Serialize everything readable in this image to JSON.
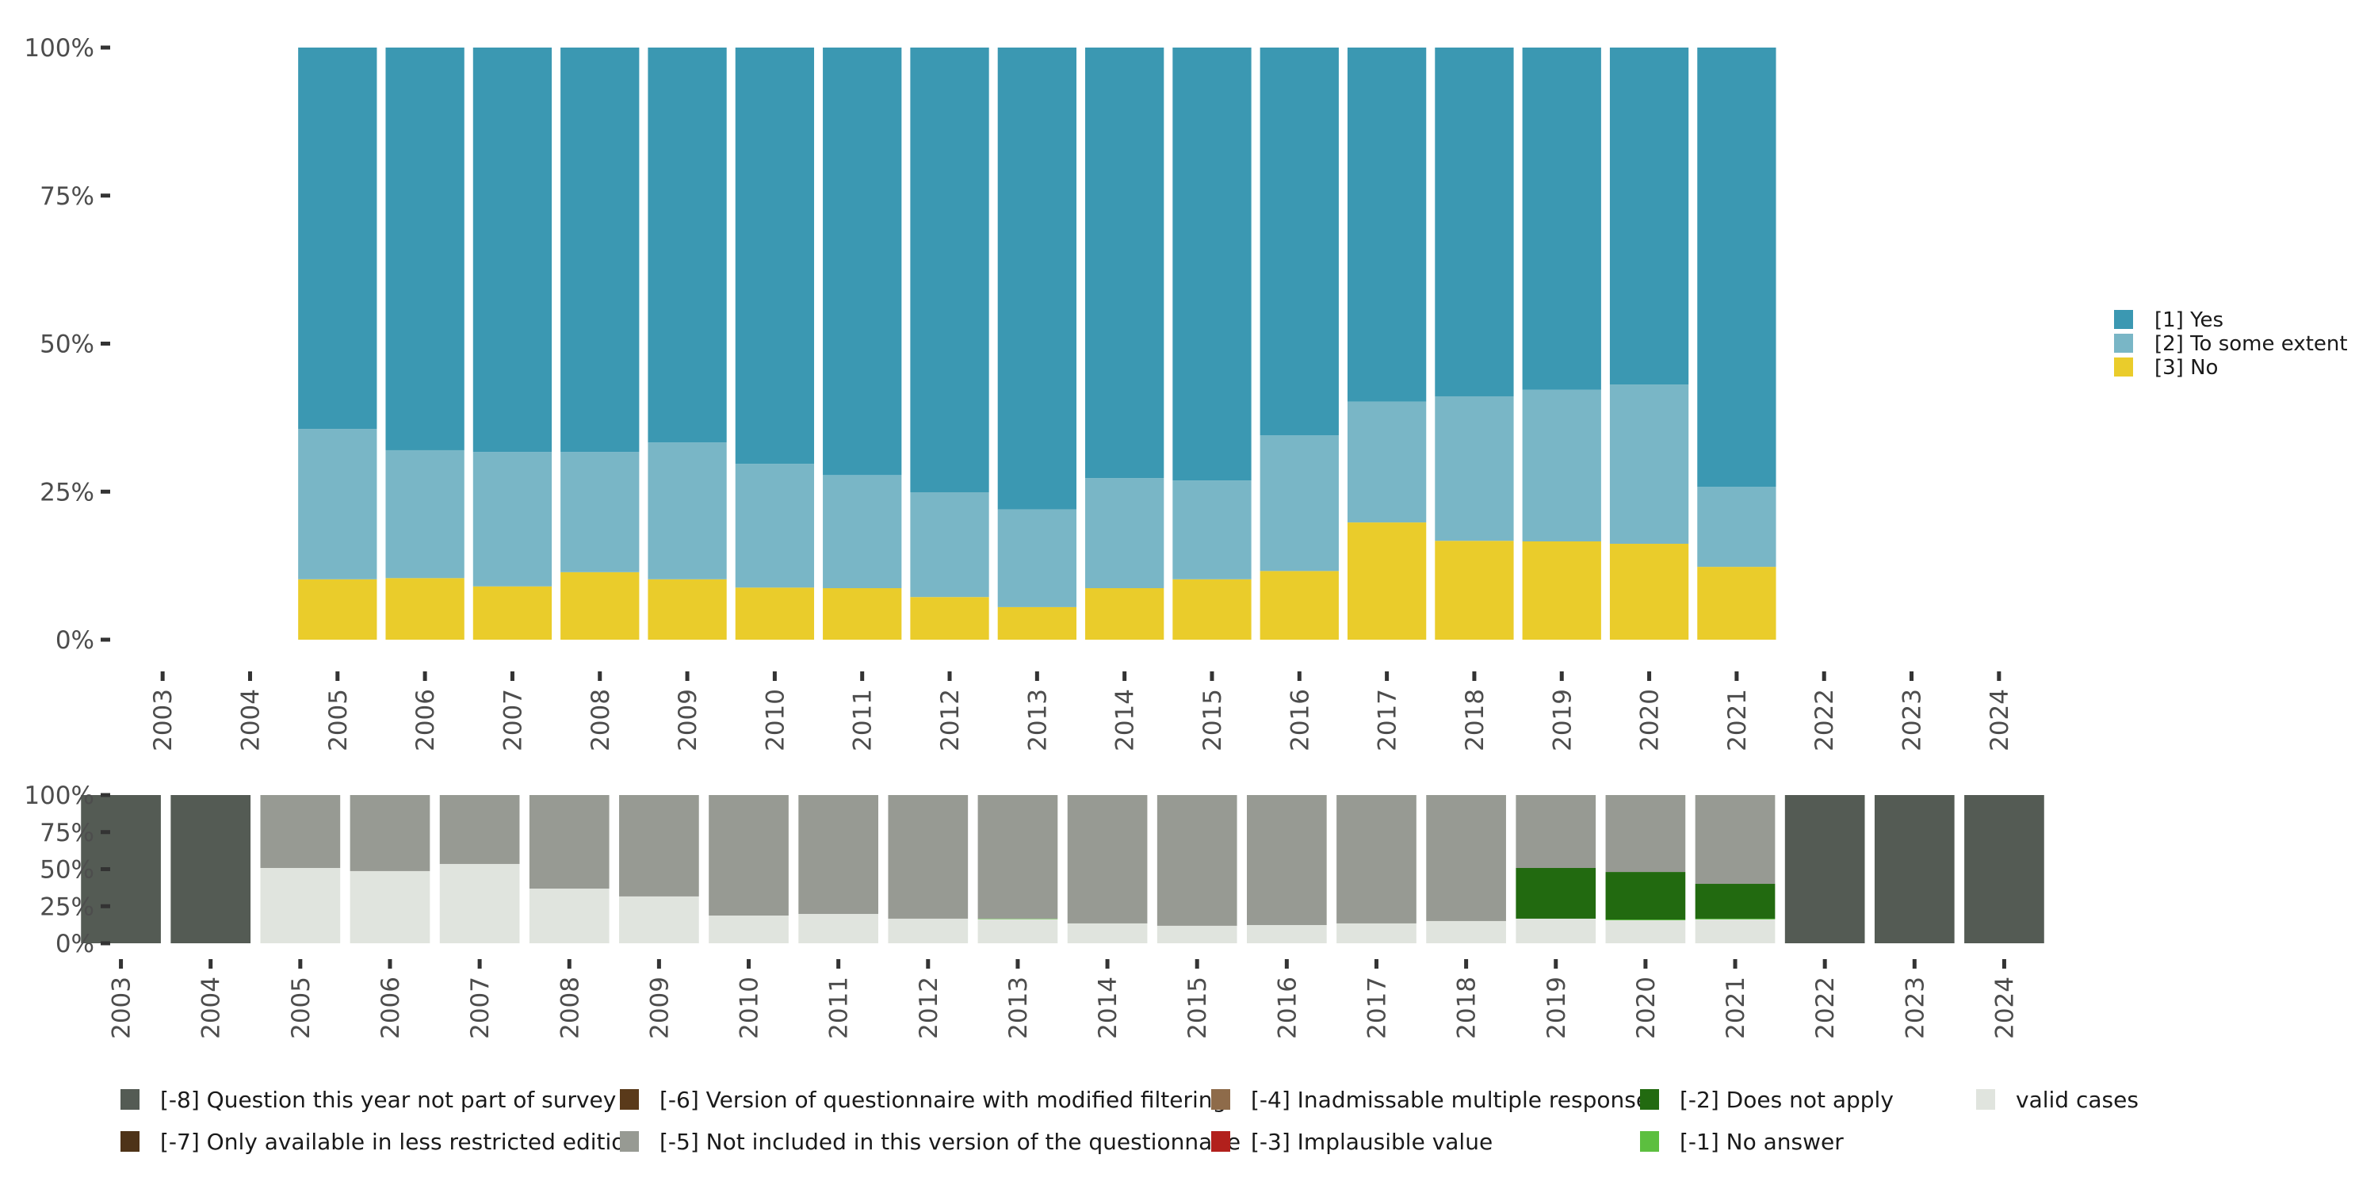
{
  "chart_data": [
    {
      "type": "bar",
      "stacked": true,
      "normalized": true,
      "title": "",
      "xlabel": "",
      "ylabel": "",
      "ylim": [
        0,
        100
      ],
      "yticks": [
        "0%",
        "25%",
        "50%",
        "75%",
        "100%"
      ],
      "categories": [
        "2003",
        "2004",
        "2005",
        "2006",
        "2007",
        "2008",
        "2009",
        "2010",
        "2011",
        "2012",
        "2013",
        "2014",
        "2015",
        "2016",
        "2017",
        "2018",
        "2019",
        "2020",
        "2021",
        "2022",
        "2023",
        "2024"
      ],
      "legend_position": "right",
      "series": [
        {
          "name": "[3] No",
          "color": "#EACC2B",
          "values": [
            null,
            null,
            10.2,
            10.4,
            9.0,
            11.4,
            10.2,
            8.8,
            8.7,
            7.2,
            5.5,
            8.7,
            10.2,
            11.6,
            19.8,
            16.7,
            16.6,
            16.2,
            12.3,
            null,
            null,
            null
          ]
        },
        {
          "name": "[2] To some extent",
          "color": "#79B6C6",
          "values": [
            null,
            null,
            25.4,
            21.6,
            22.7,
            20.3,
            23.1,
            20.9,
            19.1,
            17.7,
            16.5,
            18.6,
            16.7,
            22.9,
            20.4,
            24.4,
            25.6,
            26.9,
            13.5,
            null,
            null,
            null
          ]
        },
        {
          "name": "[1] Yes",
          "color": "#3B98B2",
          "values": [
            null,
            null,
            64.4,
            68.0,
            68.3,
            68.3,
            66.7,
            70.3,
            72.2,
            75.1,
            78.0,
            72.7,
            73.1,
            65.5,
            59.8,
            58.9,
            57.8,
            56.9,
            74.2,
            null,
            null,
            null
          ]
        }
      ],
      "legend": [
        {
          "label": "[1] Yes",
          "color": "#3B98B2"
        },
        {
          "label": "[2] To some extent",
          "color": "#79B6C6"
        },
        {
          "label": "[3] No",
          "color": "#EACC2B"
        }
      ]
    },
    {
      "type": "bar",
      "stacked": true,
      "normalized": true,
      "title": "",
      "xlabel": "",
      "ylabel": "",
      "ylim": [
        0,
        100
      ],
      "yticks": [
        "0%",
        "25%",
        "50%",
        "75%",
        "100%"
      ],
      "categories": [
        "2003",
        "2004",
        "2005",
        "2006",
        "2007",
        "2008",
        "2009",
        "2010",
        "2011",
        "2012",
        "2013",
        "2014",
        "2015",
        "2016",
        "2017",
        "2018",
        "2019",
        "2020",
        "2021",
        "2022",
        "2023",
        "2024"
      ],
      "legend_position": "bottom",
      "series": [
        {
          "name": "valid cases",
          "color": "#E0E4DE",
          "values": [
            0,
            0,
            50.8,
            48.7,
            53.5,
            36.9,
            31.6,
            18.7,
            19.8,
            16.6,
            16.3,
            13.4,
            11.8,
            12.3,
            13.4,
            15.0,
            16.6,
            15.5,
            16.1,
            0,
            0,
            0
          ]
        },
        {
          "name": "[-1] No answer",
          "color": "#5CBF3F",
          "values": [
            0,
            0,
            0,
            0,
            0,
            0,
            0,
            0,
            0,
            0,
            0.3,
            0,
            0,
            0,
            0,
            0,
            0,
            0.5,
            0.5,
            0,
            0,
            0
          ]
        },
        {
          "name": "[-2] Does not apply",
          "color": "#226A10",
          "values": [
            0,
            0,
            0,
            0,
            0,
            0,
            0,
            0,
            0,
            0,
            0,
            0,
            0,
            0,
            0,
            0,
            34.2,
            32.1,
            23.5,
            0,
            0,
            0
          ]
        },
        {
          "name": "[-3] Implausible value",
          "color": "#B2201C",
          "values": [
            0,
            0,
            0,
            0,
            0,
            0,
            0,
            0,
            0,
            0,
            0,
            0,
            0,
            0,
            0,
            0,
            0,
            0,
            0,
            0,
            0,
            0
          ]
        },
        {
          "name": "[-4] Inadmissable multiple response",
          "color": "#8E6B4A",
          "values": [
            0,
            0,
            0,
            0,
            0,
            0,
            0,
            0,
            0,
            0,
            0,
            0,
            0,
            0,
            0,
            0,
            0,
            0,
            0,
            0,
            0,
            0
          ]
        },
        {
          "name": "[-5] Not included in this version of the questionnaire",
          "color": "#979A93",
          "values": [
            0,
            0,
            49.2,
            51.3,
            46.5,
            63.1,
            68.4,
            81.3,
            80.2,
            83.4,
            83.4,
            86.6,
            88.2,
            87.7,
            86.6,
            85.0,
            49.2,
            51.9,
            59.9,
            0,
            0,
            0
          ]
        },
        {
          "name": "[-6] Version of questionnaire with modified filtering",
          "color": "#5A3A1A",
          "values": [
            0,
            0,
            0,
            0,
            0,
            0,
            0,
            0,
            0,
            0,
            0,
            0,
            0,
            0,
            0,
            0,
            0,
            0,
            0,
            0,
            0,
            0
          ]
        },
        {
          "name": "[-7] Only available in less restricted edition",
          "color": "#4E3318",
          "values": [
            0,
            0,
            0,
            0,
            0,
            0,
            0,
            0,
            0,
            0,
            0,
            0,
            0,
            0,
            0,
            0,
            0,
            0,
            0,
            0,
            0,
            0
          ]
        },
        {
          "name": "[-8] Question this year not part of survey",
          "color": "#545B54",
          "values": [
            100,
            100,
            0,
            0,
            0,
            0,
            0,
            0,
            0,
            0,
            0,
            0,
            0,
            0,
            0,
            0,
            0,
            0,
            0,
            100,
            100,
            100
          ]
        }
      ],
      "legend": [
        {
          "label": "[-8] Question this year not part of survey",
          "color": "#545B54"
        },
        {
          "label": "[-7] Only available in less restricted edition",
          "color": "#4E3318"
        },
        {
          "label": "[-6] Version of questionnaire with modified filtering",
          "color": "#5A3A1A"
        },
        {
          "label": "[-5] Not included in this version of the questionnaire",
          "color": "#979A93"
        },
        {
          "label": "[-4] Inadmissable multiple response",
          "color": "#8E6B4A"
        },
        {
          "label": "[-3] Implausible value",
          "color": "#B2201C"
        },
        {
          "label": "[-2] Does not apply",
          "color": "#226A10"
        },
        {
          "label": "[-1] No answer",
          "color": "#5CBF3F"
        },
        {
          "label": "valid cases",
          "color": "#E0E4DE"
        }
      ]
    }
  ]
}
